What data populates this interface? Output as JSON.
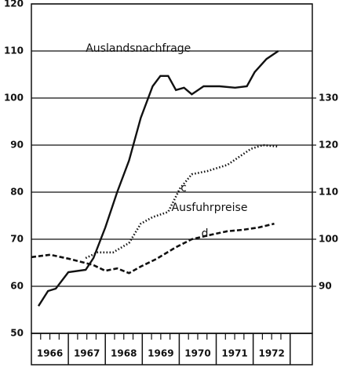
{
  "chart_data": {
    "type": "line",
    "xlim": [
      1966,
      1973.6
    ],
    "xticks": [
      {
        "value": 1966.5,
        "label": "1966"
      },
      {
        "value": 1967.5,
        "label": "1967"
      },
      {
        "value": 1968.5,
        "label": "1968"
      },
      {
        "value": 1969.5,
        "label": "1969"
      },
      {
        "value": 1970.5,
        "label": "1970"
      },
      {
        "value": 1971.5,
        "label": "1971"
      },
      {
        "value": 1972.5,
        "label": "1972"
      }
    ],
    "ylim": [
      50,
      120
    ],
    "yticks": [
      50,
      60,
      70,
      80,
      90,
      100,
      110,
      120
    ],
    "y2lim": [
      80,
      150
    ],
    "y2ticks": [
      90,
      100,
      110,
      120,
      130
    ],
    "grid": true,
    "series": [
      {
        "name": "Auslandsnachfrage",
        "color": "#111111",
        "style": "solid",
        "x": [
          1966.19,
          1966.45,
          1966.66,
          1967.0,
          1967.47,
          1967.68,
          1968.0,
          1968.32,
          1968.64,
          1968.96,
          1969.28,
          1969.49,
          1969.7,
          1969.91,
          1970.13,
          1970.34,
          1970.66,
          1971.09,
          1971.51,
          1971.83,
          1972.04,
          1972.36,
          1972.68
        ],
        "values": [
          55.8,
          59,
          59.5,
          63,
          63.5,
          66,
          72.5,
          80,
          86.7,
          95.8,
          102.5,
          104.7,
          104.7,
          101.7,
          102.2,
          100.8,
          102.5,
          102.5,
          102.2,
          102.5,
          105.5,
          108.3,
          110
        ]
      },
      {
        "name": "c",
        "color": "#111111",
        "style": "dotted",
        "axis": "y2",
        "x": [
          1967.47,
          1967.79,
          1968.21,
          1968.64,
          1968.96,
          1969.28,
          1969.7,
          1970.02,
          1970.34,
          1970.77,
          1971.3,
          1971.62,
          1971.94,
          1972.26,
          1972.68
        ],
        "values": [
          96,
          97.2,
          97.2,
          99.2,
          103.3,
          104.7,
          105.8,
          110.8,
          113.8,
          114.5,
          115.8,
          117.5,
          119.2,
          120,
          119.7
        ]
      },
      {
        "name": "d",
        "color": "#111111",
        "style": "dashed",
        "axis": "y2",
        "x": [
          1966.0,
          1966.51,
          1967.04,
          1967.68,
          1968.0,
          1968.32,
          1968.64,
          1968.96,
          1969.38,
          1969.91,
          1970.34,
          1970.77,
          1971.3,
          1971.72,
          1972.15,
          1972.57
        ],
        "values": [
          96.2,
          96.7,
          95.8,
          94.5,
          93.3,
          93.8,
          92.8,
          94.2,
          95.8,
          98.3,
          100,
          100.8,
          101.7,
          102,
          102.5,
          103.3
        ]
      }
    ],
    "annotations": [
      {
        "text": "Auslandsnachfrage",
        "x": 1967.47,
        "y": 110.5
      },
      {
        "text": "Ausfuhrpreise",
        "x": 1969.79,
        "y": 76.7
      },
      {
        "text": "c",
        "x": 1970.04,
        "y": 80.8
      },
      {
        "text": "d",
        "x": 1970.6,
        "y": 71.2
      }
    ]
  }
}
